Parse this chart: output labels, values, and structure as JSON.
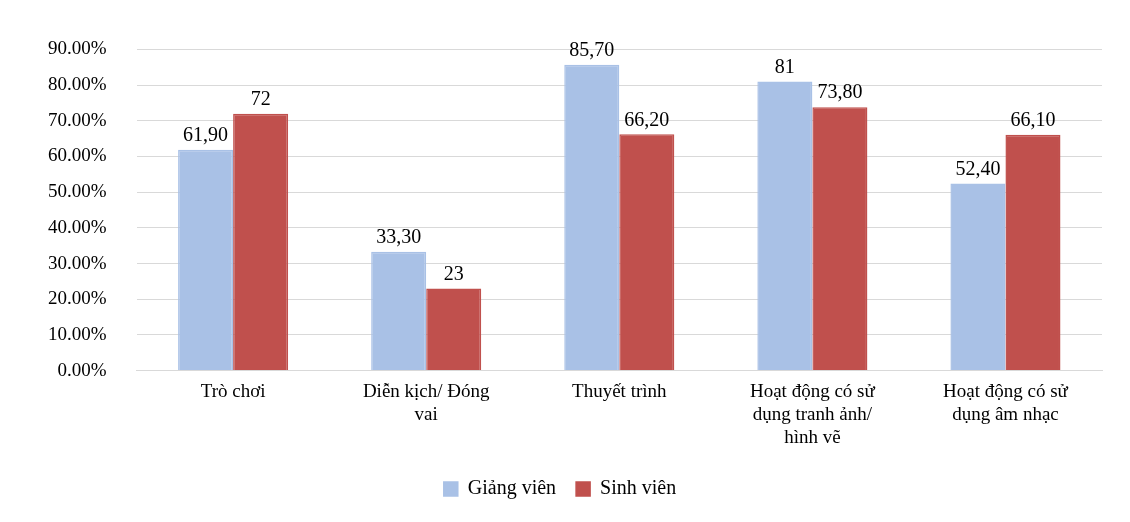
{
  "chart_data": {
    "type": "bar",
    "categories": [
      "Trò chơi",
      "Diễn kịch/ Đóng vai",
      "Thuyết trình",
      "Hoạt động có sử dụng tranh ảnh/ hình vẽ",
      "Hoạt động có sử dụng âm nhạc"
    ],
    "series": [
      {
        "name": "Giảng viên",
        "color": "#a9c1e6",
        "values": [
          61.9,
          33.3,
          85.7,
          81,
          52.4
        ],
        "value_labels": [
          "61,90",
          "33,30",
          "85,70",
          "81",
          "52,40"
        ]
      },
      {
        "name": "Sinh viên",
        "color": "#c0504d",
        "values": [
          72,
          23,
          66.2,
          73.8,
          66.1
        ],
        "value_labels": [
          "72",
          "23",
          "66,20",
          "73,80",
          "66,10"
        ]
      }
    ],
    "ylim": [
      0,
      90
    ],
    "yticks": [
      {
        "value": 0,
        "label": "0.00%"
      },
      {
        "value": 10,
        "label": "10.00%"
      },
      {
        "value": 20,
        "label": "20.00%"
      },
      {
        "value": 30,
        "label": "30.00%"
      },
      {
        "value": 40,
        "label": "40.00%"
      },
      {
        "value": 50,
        "label": "50.00%"
      },
      {
        "value": 60,
        "label": "60.00%"
      },
      {
        "value": 70,
        "label": "70.00%"
      },
      {
        "value": 80,
        "label": "80.00%"
      },
      {
        "value": 90,
        "label": "90.00%"
      }
    ],
    "grid": "y",
    "legend": "bottom"
  }
}
